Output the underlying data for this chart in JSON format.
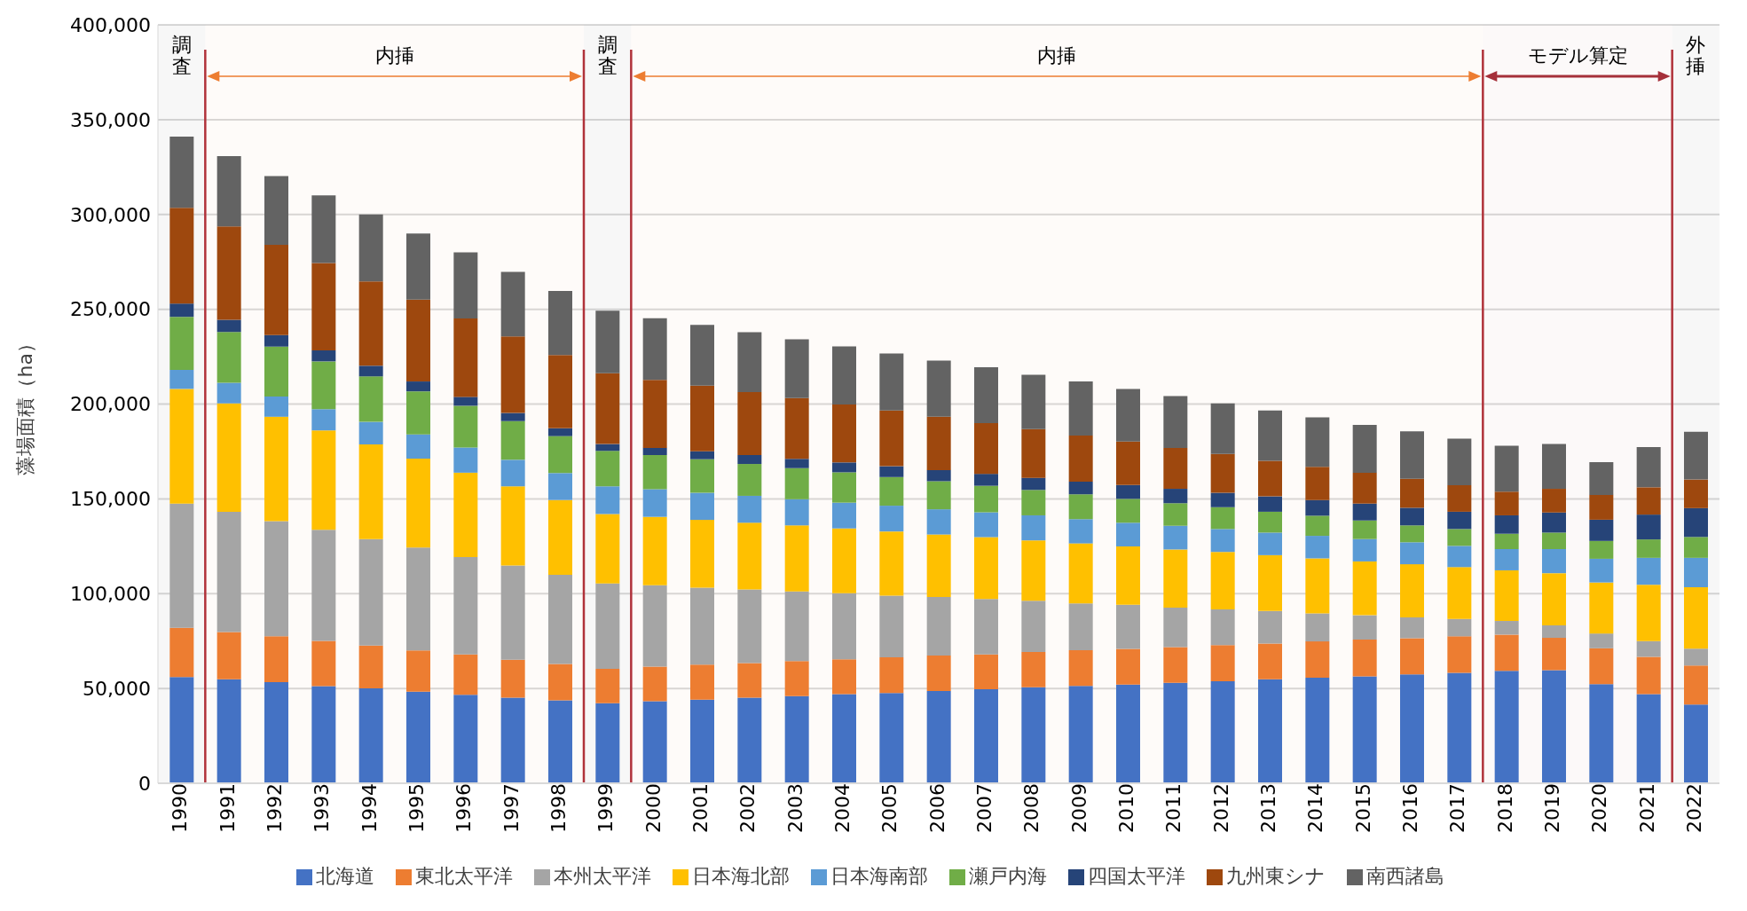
{
  "chart_data": {
    "type": "bar",
    "stacked": true,
    "ylabel": "藻場面積（ha）",
    "categories": [
      "1990",
      "1991",
      "1992",
      "1993",
      "1994",
      "1995",
      "1996",
      "1997",
      "1998",
      "1999",
      "2000",
      "2001",
      "2002",
      "2003",
      "2004",
      "2005",
      "2006",
      "2007",
      "2008",
      "2009",
      "2010",
      "2011",
      "2012",
      "2013",
      "2014",
      "2015",
      "2016",
      "2017",
      "2018",
      "2019",
      "2020",
      "2021",
      "2022"
    ],
    "ylim": [
      0,
      400000
    ],
    "yticks": [
      0,
      {
        "value": 50000,
        "label": "50,000"
      },
      {
        "value": 100000,
        "label": "100,000"
      },
      {
        "value": 150000,
        "label": "150,000"
      },
      {
        "value": 200000,
        "label": "200,000"
      },
      {
        "value": 250000,
        "label": "250,000"
      },
      {
        "value": 300000,
        "label": "300,000"
      },
      {
        "value": 350000,
        "label": "350,000"
      },
      {
        "value": 400000,
        "label": "400,000"
      }
    ],
    "grid": "y",
    "legend": "bottom",
    "series": [
      {
        "name": "北海道",
        "color": "#4472c4",
        "values": [
          56000,
          54800,
          53300,
          51200,
          50100,
          48300,
          46700,
          45200,
          43800,
          42200,
          43300,
          44100,
          45100,
          46000,
          47000,
          47600,
          48600,
          49600,
          50600,
          51400,
          52000,
          53000,
          53800,
          54900,
          55700,
          56400,
          57400,
          58300,
          59300,
          59700,
          52300,
          47000,
          41500
        ]
      },
      {
        "name": "東北太平洋",
        "color": "#ed7d31",
        "values": [
          26000,
          25000,
          24200,
          23900,
          22500,
          21800,
          21200,
          20000,
          19100,
          18200,
          18200,
          18500,
          18300,
          18400,
          18400,
          18800,
          18800,
          18400,
          18600,
          18800,
          18900,
          18800,
          19100,
          18800,
          19100,
          19400,
          19100,
          19200,
          19100,
          17000,
          18900,
          19700,
          20600
        ]
      },
      {
        "name": "本州太平洋",
        "color": "#a5a5a5",
        "values": [
          65500,
          63300,
          60700,
          58600,
          56200,
          54200,
          51400,
          49600,
          47000,
          45000,
          43000,
          40600,
          38800,
          36800,
          34800,
          32600,
          30800,
          29200,
          27000,
          24700,
          23200,
          20800,
          18800,
          17200,
          14800,
          12800,
          11000,
          9200,
          7200,
          6600,
          7800,
          8300,
          8900
        ]
      },
      {
        "name": "日本海北部",
        "color": "#ffc000",
        "values": [
          60500,
          57300,
          55100,
          52400,
          49900,
          46900,
          44500,
          41800,
          39500,
          36600,
          36000,
          35700,
          35200,
          34800,
          34200,
          33800,
          33000,
          32600,
          31900,
          31600,
          30800,
          30700,
          30300,
          29400,
          29000,
          28400,
          28000,
          27300,
          26700,
          27500,
          26900,
          29700,
          32400
        ]
      },
      {
        "name": "日本海南部",
        "color": "#5b9bd5",
        "values": [
          10000,
          10800,
          10700,
          11200,
          11900,
          12800,
          13300,
          14000,
          14200,
          14600,
          14600,
          14300,
          14200,
          13800,
          13600,
          13600,
          13300,
          13100,
          13200,
          12800,
          12500,
          12500,
          12100,
          11900,
          11900,
          11800,
          11600,
          11200,
          11200,
          12700,
          12500,
          14200,
          15500
        ]
      },
      {
        "name": "瀬戸内海",
        "color": "#70ad47",
        "values": [
          28000,
          26800,
          26300,
          25200,
          24000,
          22700,
          22000,
          20400,
          19500,
          18700,
          18000,
          17700,
          16800,
          16400,
          16000,
          15100,
          14800,
          14000,
          13400,
          13100,
          12600,
          11900,
          11500,
          11000,
          10600,
          9800,
          8900,
          8900,
          8100,
          8700,
          9400,
          9700,
          11000
        ]
      },
      {
        "name": "四国太平洋",
        "color": "#264478",
        "values": [
          7000,
          6500,
          6100,
          5800,
          5600,
          5200,
          4700,
          4300,
          4100,
          3600,
          3800,
          4200,
          4700,
          4900,
          5200,
          5700,
          5900,
          6300,
          6400,
          6700,
          7300,
          7600,
          7600,
          8100,
          8300,
          8900,
          9300,
          9100,
          9700,
          10600,
          11200,
          13100,
          15200
        ]
      },
      {
        "name": "九州東シナ",
        "color": "#9e480e",
        "values": [
          50500,
          49200,
          47600,
          46100,
          44500,
          43200,
          41400,
          40400,
          38600,
          37300,
          35900,
          34600,
          33200,
          32100,
          30600,
          29400,
          28100,
          26700,
          25700,
          24300,
          22900,
          21600,
          20500,
          18800,
          17500,
          16300,
          15300,
          14000,
          12500,
          12500,
          13100,
          14400,
          15100
        ]
      },
      {
        "name": "南西諸島",
        "color": "#636363",
        "values": [
          37500,
          37100,
          36200,
          35700,
          35300,
          34800,
          34800,
          34000,
          33800,
          33000,
          32500,
          32000,
          31600,
          31000,
          30600,
          30100,
          29600,
          29500,
          28600,
          28500,
          27700,
          27300,
          26700,
          26500,
          26100,
          25200,
          25000,
          24600,
          24200,
          23700,
          17200,
          21200,
          25200
        ]
      }
    ],
    "bands": [
      {
        "axis": "x",
        "from": "1990",
        "to": "1990",
        "label": "調査"
      },
      {
        "axis": "x",
        "from": "1991",
        "to": "1998",
        "label": "内挿",
        "color": "#ed7d31"
      },
      {
        "axis": "x",
        "from": "1999",
        "to": "1999",
        "label": "調査"
      },
      {
        "axis": "x",
        "from": "2000",
        "to": "2017",
        "label": "内挿",
        "color": "#ed7d31"
      },
      {
        "axis": "x",
        "from": "2018",
        "to": "2021",
        "label": "モデル算定",
        "color": "#a5303a"
      },
      {
        "axis": "x",
        "from": "2022",
        "to": "2022",
        "label": "外挿"
      }
    ]
  }
}
